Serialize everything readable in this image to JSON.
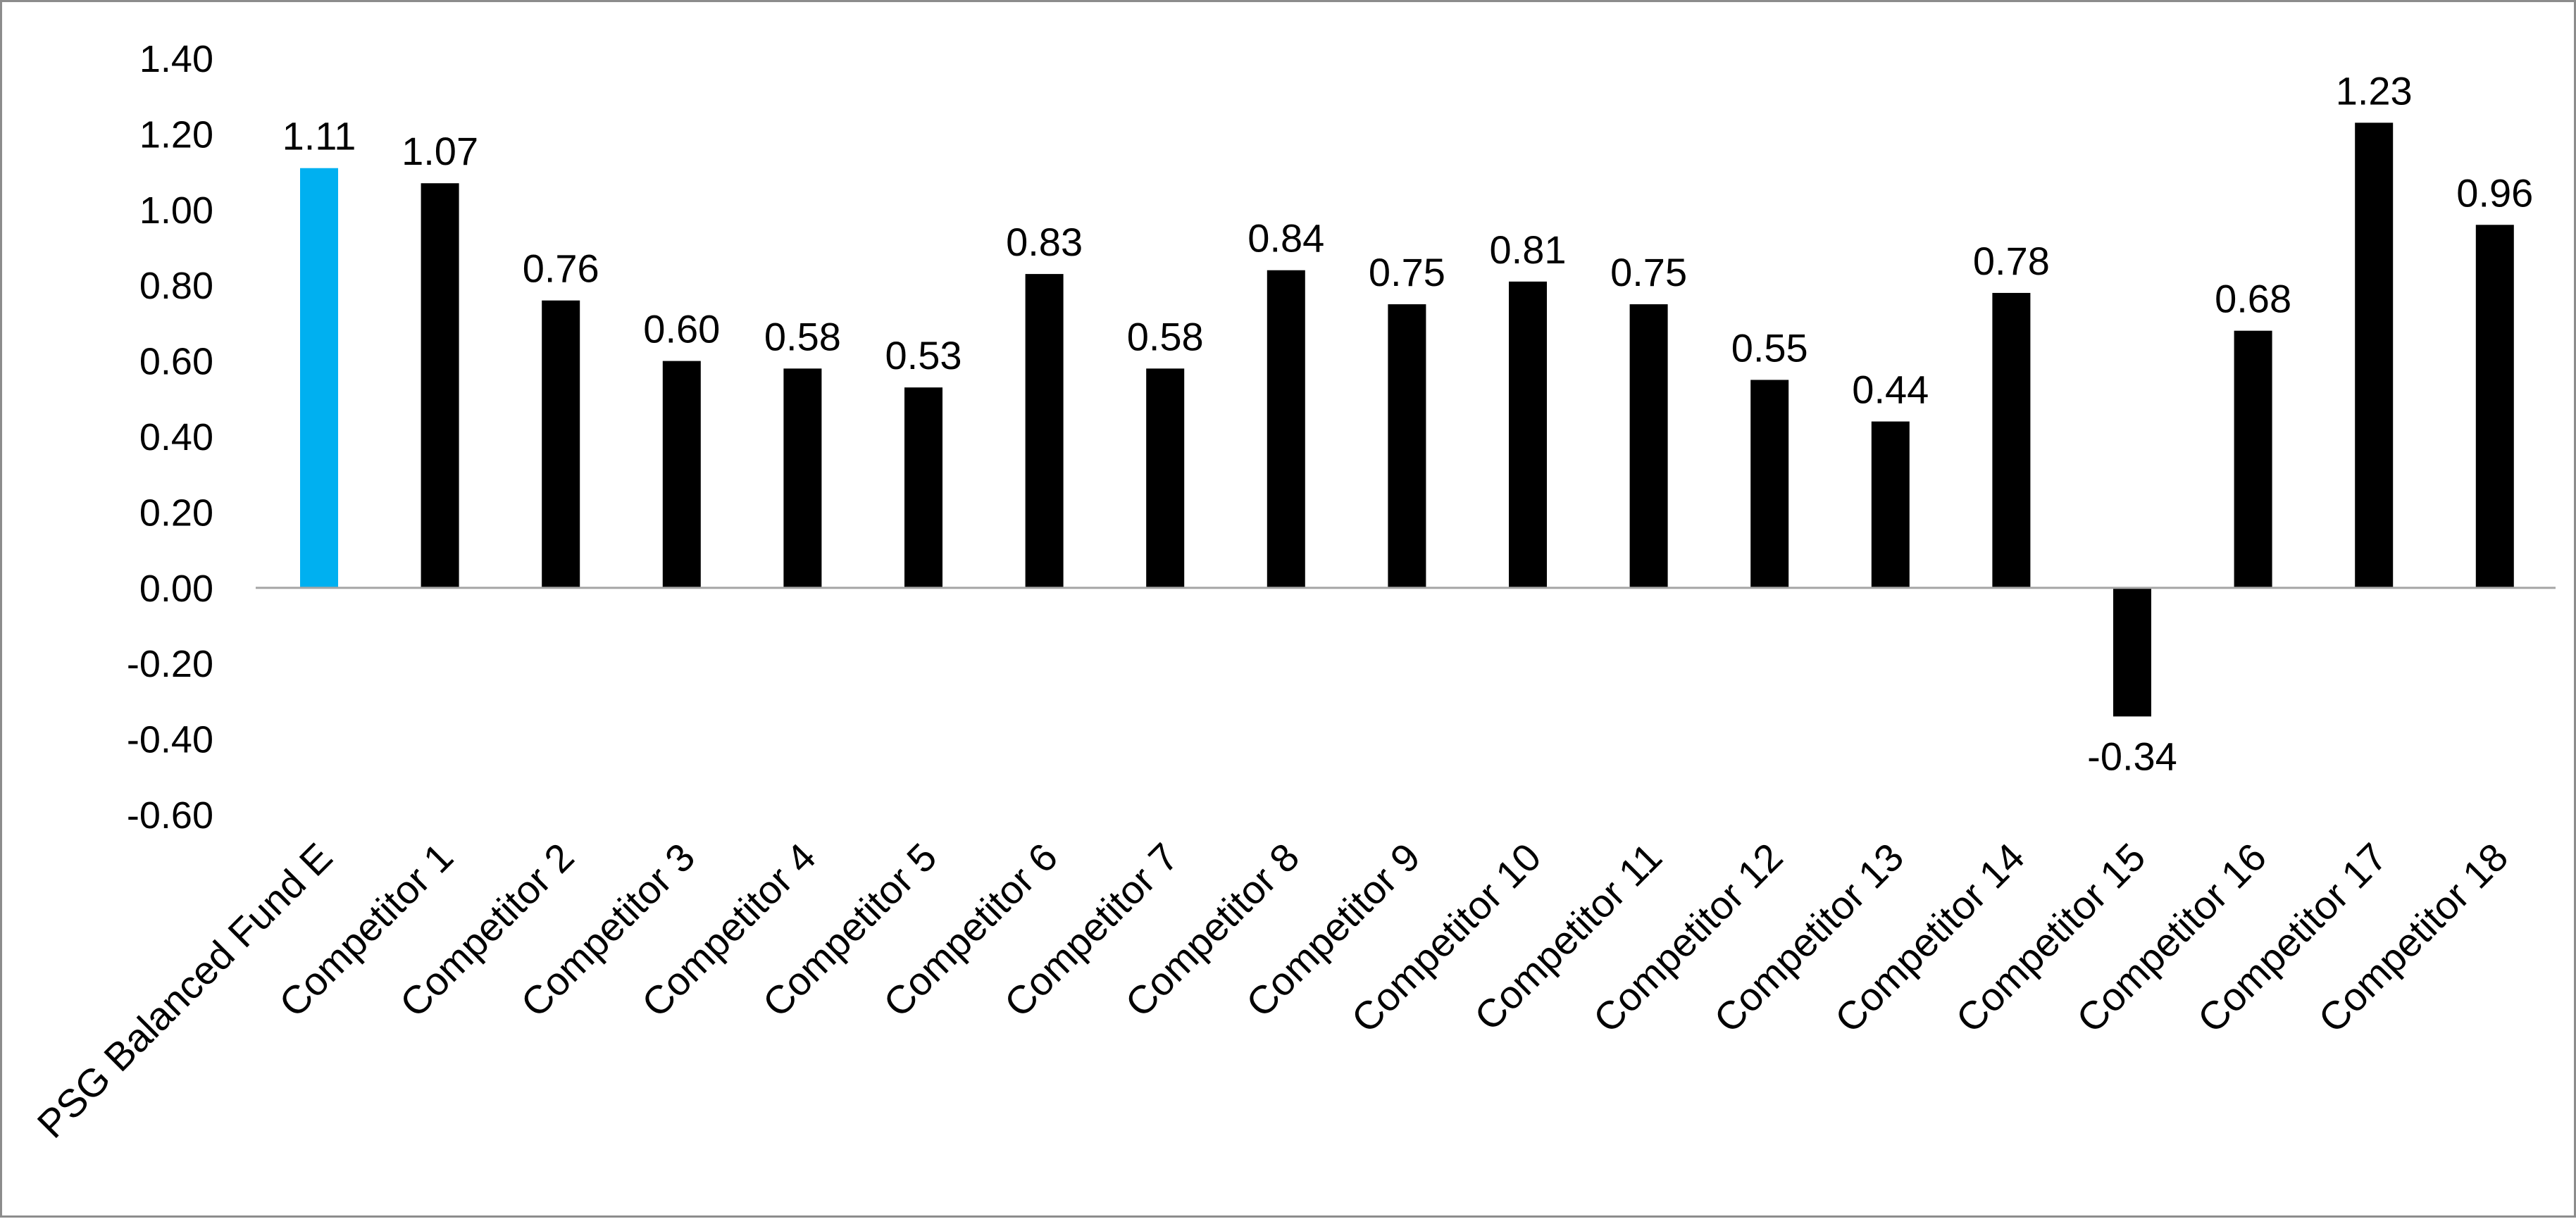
{
  "chart_data": {
    "type": "bar",
    "categories": [
      "PSG Balanced Fund E",
      "Competitor 1",
      "Competitor 2",
      "Competitor 3",
      "Competitor 4",
      "Competitor 5",
      "Competitor 6",
      "Competitor 7",
      "Competitor 8",
      "Competitor 9",
      "Competitor 10",
      "Competitor 11",
      "Competitor 12",
      "Competitor 13",
      "Competitor 14",
      "Competitor 15",
      "Competitor 16",
      "Competitor 17",
      "Competitor 18"
    ],
    "values": [
      1.11,
      1.07,
      0.76,
      0.6,
      0.58,
      0.53,
      0.83,
      0.58,
      0.84,
      0.75,
      0.81,
      0.75,
      0.55,
      0.44,
      0.78,
      -0.34,
      0.68,
      1.23,
      0.96
    ],
    "data_labels": [
      "1.11",
      "1.07",
      "0.76",
      "0.60",
      "0.58",
      "0.53",
      "0.83",
      "0.58",
      "0.84",
      "0.75",
      "0.81",
      "0.75",
      "0.55",
      "0.44",
      "0.78",
      "-0.34",
      "0.68",
      "1.23",
      "0.96"
    ],
    "y_ticks": [
      "1.40",
      "1.20",
      "1.00",
      "0.80",
      "0.60",
      "0.40",
      "0.20",
      "0.00",
      "-0.20",
      "-0.40",
      "-0.60"
    ],
    "ylim": [
      -0.6,
      1.4
    ],
    "title": "",
    "xlabel": "",
    "ylabel": "",
    "grid": false,
    "legend": "none",
    "colors": {
      "highlight": "#00b0f0",
      "bar": "#000000",
      "axis": "#a6a6a6",
      "border": "#8c8c8c"
    }
  }
}
